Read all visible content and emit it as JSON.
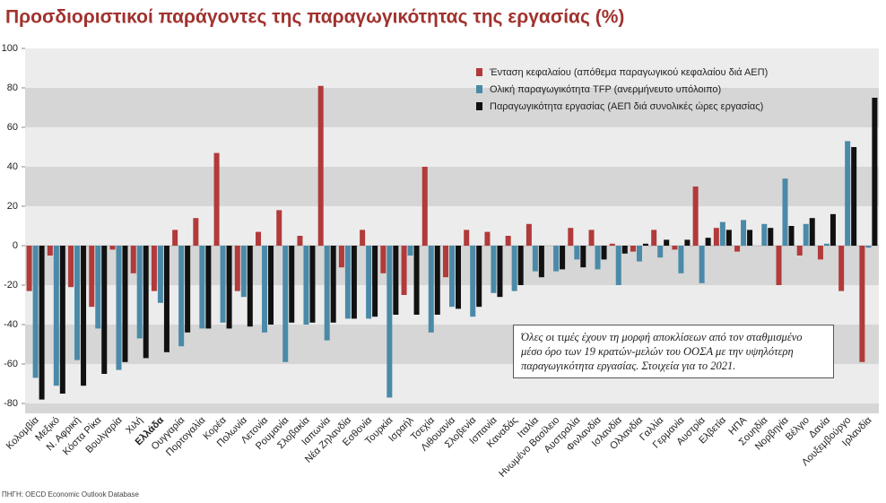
{
  "chart_data": {
    "type": "bar",
    "title": "Προσδιοριστικοί παράγοντες της παραγωγικότητας της εργασίας (%)",
    "categories": [
      "Κολομβία",
      "Μεξικό",
      "Ν. Αφρική",
      "Κόστα Ρίκα",
      "Βουλγαρία",
      "Χιλή",
      "Ελλάδα",
      "Ουγγαρία",
      "Πορτογαλία",
      "Κορέα",
      "Πολωνία",
      "Λετονία",
      "Ρουμανία",
      "Σλοβακία",
      "Ιαπωνία",
      "Νέα Ζηλανδία",
      "Εσθονία",
      "Τουρκία",
      "Ισραήλ",
      "Τσεχία",
      "Λιθουανία",
      "Σλοβενία",
      "Ισπανία",
      "Καναδάς",
      "Ιταλία",
      "Ηνωμένο Βασίλειο",
      "Αυστραλία",
      "Φινλανδία",
      "Ισλανδία",
      "Ολλανδία",
      "Γαλλία",
      "Γερμανία",
      "Αυστρία",
      "Ελβετία",
      "ΗΠΑ",
      "Σουηδία",
      "Νορβηγία",
      "Βέλγιο",
      "Δανία",
      "Λουξεμβούργο",
      "Ιρλανδία"
    ],
    "highlight_category_index": 6,
    "series": [
      {
        "name": "Ένταση κεφαλαίου (απόθεμα παραγωγικού κεφαλαίου διά ΑΕΠ)",
        "color": "#b23a3a",
        "values": [
          -23,
          -5,
          -21,
          -31,
          -2,
          -14,
          -23,
          8,
          14,
          47,
          -23,
          7,
          18,
          5,
          81,
          -11,
          8,
          -14,
          -25,
          40,
          -16,
          8,
          7,
          5,
          11,
          0,
          9,
          8,
          1,
          -3,
          8,
          -2,
          30,
          9,
          -3,
          0,
          -20,
          -5,
          -7,
          -23,
          -59
        ]
      },
      {
        "name": "Ολική παραγωγικότητα TFP (ανερμήνευτο υπόλοιπο)",
        "color": "#4a8aa8",
        "values": [
          -67,
          -71,
          -58,
          -42,
          -63,
          -47,
          -29,
          -51,
          -42,
          -39,
          -26,
          -44,
          -59,
          -40,
          -48,
          -37,
          -37,
          -77,
          -5,
          -44,
          -31,
          -36,
          -24,
          -23,
          -13,
          -13,
          -7,
          -12,
          -20,
          -8,
          -6,
          -14,
          -19,
          12,
          13,
          11,
          34,
          11,
          1,
          53,
          -1
        ]
      },
      {
        "name": "Παραγωγικότητα εργασίας (ΑΕΠ διά συνολικές ώρες εργασίας)",
        "color": "#111111",
        "values": [
          -78,
          -75,
          -71,
          -65,
          -59,
          -57,
          -54,
          -44,
          -42,
          -42,
          -41,
          -40,
          -39,
          -39,
          -39,
          -37,
          -36,
          -35,
          -35,
          -35,
          -32,
          -31,
          -26,
          -20,
          -16,
          -12,
          -11,
          -7,
          -4,
          1,
          3,
          3,
          4,
          8,
          8,
          9,
          10,
          14,
          16,
          50,
          75
        ]
      }
    ],
    "ylim": [
      -85,
      100
    ],
    "yticks": [
      -80,
      -60,
      -40,
      -20,
      0,
      20,
      40,
      60,
      80,
      100
    ],
    "note": "Όλες οι τιμές έχουν τη μορφή αποκλίσεων από τον σταθμισμένο μέσο όρο των 19 κρατών-μελών του ΟΟΣΑ με την υψηλότερη παραγωγικότητα εργασίας. Στοιχεία για το 2021.",
    "source": "ΠΗΓΗ: OECD Economic Outlook Database"
  }
}
